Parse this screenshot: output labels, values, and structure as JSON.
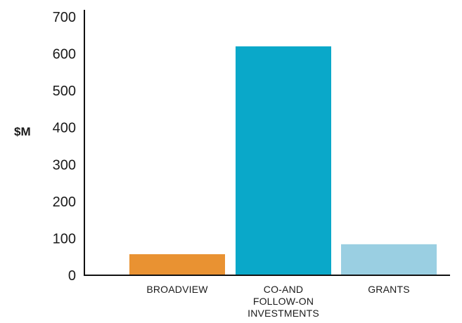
{
  "chart_data": {
    "type": "bar",
    "title": "",
    "xlabel": "",
    "ylabel": "$M",
    "ylim": [
      0,
      700
    ],
    "yticks": [
      0,
      100,
      200,
      300,
      400,
      500,
      600,
      700
    ],
    "grid": false,
    "categories": [
      [
        "BROADVIEW"
      ],
      [
        "CO-AND",
        "FOLLOW-ON",
        "INVESTMENTS"
      ],
      [
        "GRANTS"
      ]
    ],
    "values": [
      57,
      620,
      84
    ],
    "colors": [
      "#E99232",
      "#0AA8C9",
      "#9ACFE2"
    ]
  }
}
